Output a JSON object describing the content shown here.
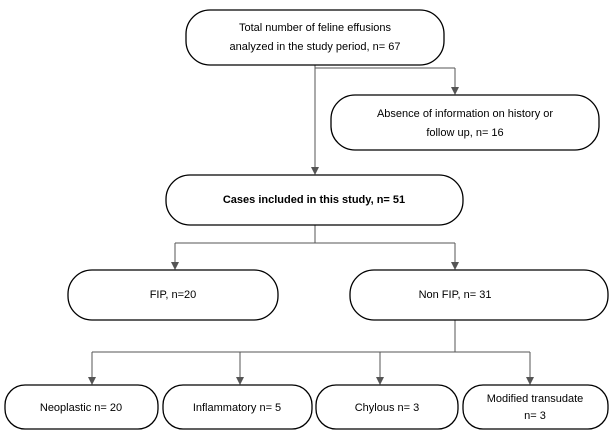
{
  "nodes": [
    {
      "lines": [
        "Total number of feline effusions",
        "analyzed in the study period, n= 67"
      ]
    },
    {
      "lines": [
        "Absence of information on history or",
        "follow up, n= 16"
      ]
    },
    {
      "lines": [
        "Cases included in this study, n= 51"
      ]
    },
    {
      "lines": [
        "FIP, n=20"
      ]
    },
    {
      "lines": [
        "Non FIP, n= 31"
      ]
    },
    {
      "lines": [
        "Neoplastic n= 20"
      ]
    },
    {
      "lines": [
        "Inflammatory n= 5"
      ]
    },
    {
      "lines": [
        "Chylous n= 3"
      ]
    },
    {
      "lines": [
        "Modified transudate",
        "n= 3"
      ]
    }
  ]
}
